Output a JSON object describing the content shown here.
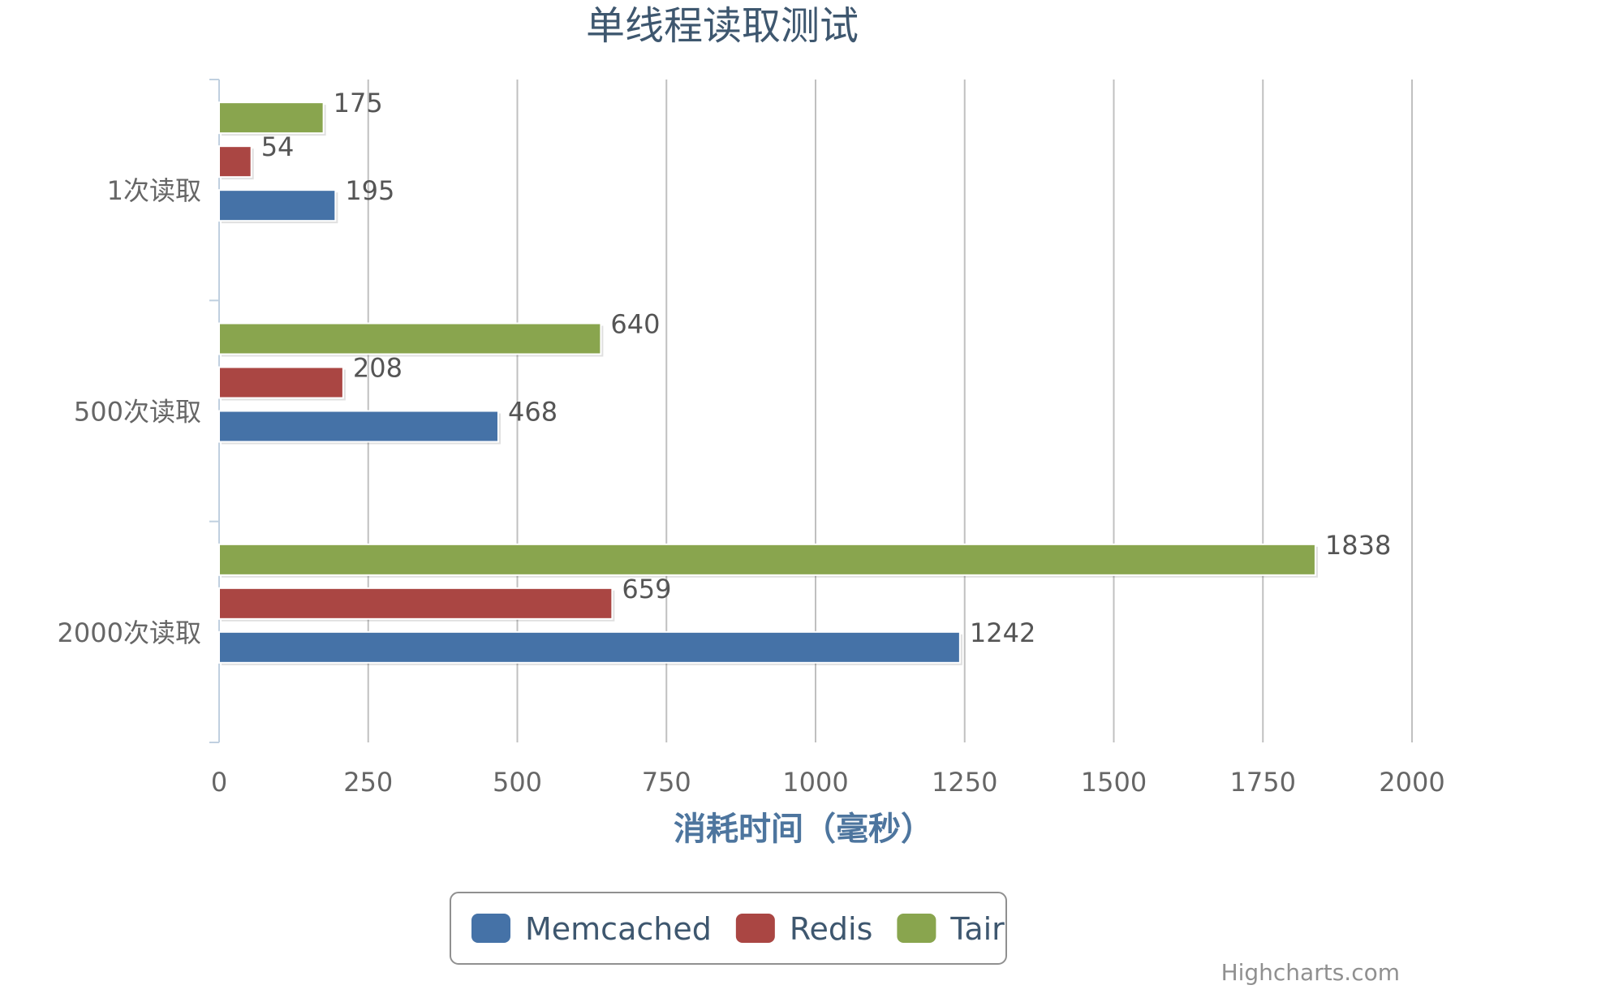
{
  "chart_data": {
    "type": "bar",
    "orientation": "horizontal",
    "title": "单线程读取测试",
    "xlabel": "消耗时间（毫秒）",
    "ylabel": "",
    "categories": [
      "1次读取",
      "500次读取",
      "2000次读取"
    ],
    "x_ticks": [
      "0",
      "250",
      "500",
      "750",
      "1000",
      "1250",
      "1500",
      "1750",
      "2000"
    ],
    "xlim": [
      0,
      2000
    ],
    "grid": true,
    "legend_position": "bottom-center",
    "series": [
      {
        "name": "Memcached",
        "color": "#4572a7",
        "values": [
          195,
          468,
          1242
        ]
      },
      {
        "name": "Redis",
        "color": "#aa4643",
        "values": [
          54,
          208,
          659
        ]
      },
      {
        "name": "Tair",
        "color": "#89a54e",
        "values": [
          175,
          640,
          1838
        ]
      }
    ],
    "credits": "Highcharts.com"
  }
}
